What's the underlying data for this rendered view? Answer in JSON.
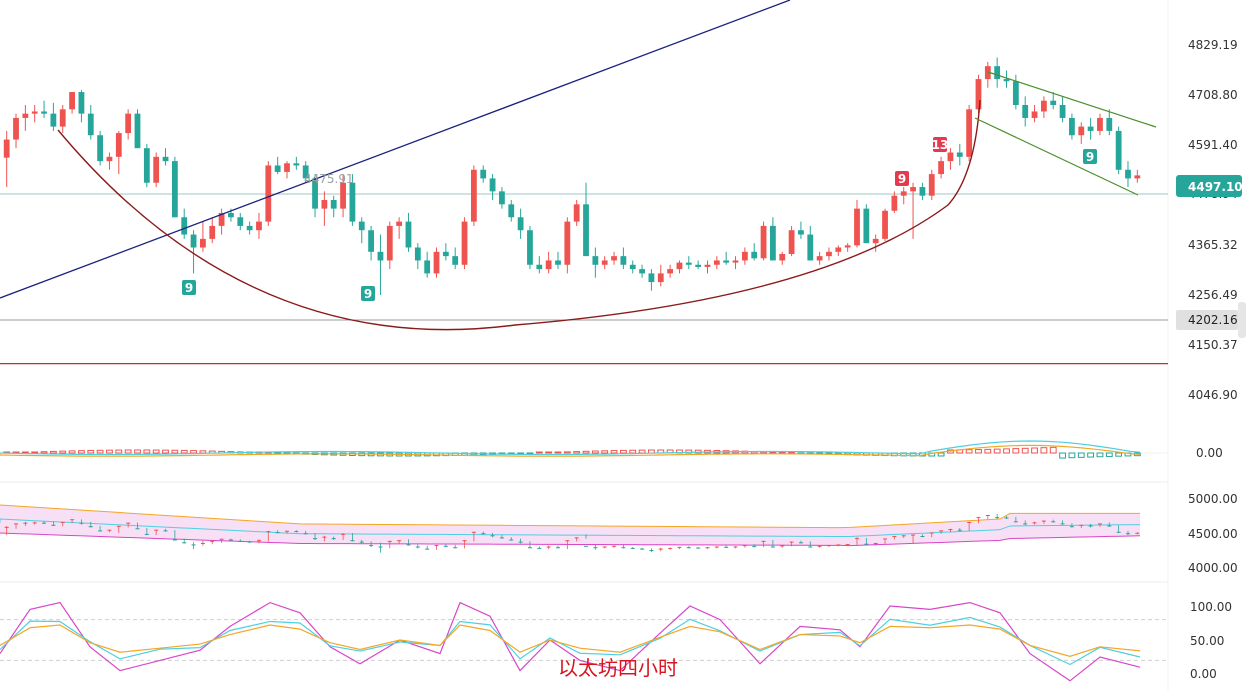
{
  "caption": "以太坊四小时",
  "chart_data": {
    "type": "candlestick",
    "main": {
      "ylim": [
        4000,
        4880
      ],
      "ticks": [
        "4829.19",
        "4708.80",
        "4591.40",
        "4365.32",
        "4256.49",
        "4150.37",
        "4046.90"
      ],
      "current_price": "4497.10",
      "marked_low": "4202.16",
      "axis_hidden_label": "4478.94",
      "annotated_high": "4475.91",
      "red_line": 4061,
      "candles_ohlc": [
        [
          4538,
          4600,
          4470,
          4580
        ],
        [
          4580,
          4640,
          4560,
          4630
        ],
        [
          4630,
          4660,
          4600,
          4640
        ],
        [
          4640,
          4660,
          4620,
          4645
        ],
        [
          4645,
          4670,
          4630,
          4640
        ],
        [
          4640,
          4665,
          4600,
          4610
        ],
        [
          4610,
          4660,
          4595,
          4650
        ],
        [
          4650,
          4690,
          4640,
          4690
        ],
        [
          4690,
          4695,
          4620,
          4640
        ],
        [
          4640,
          4660,
          4580,
          4590
        ],
        [
          4590,
          4600,
          4520,
          4530
        ],
        [
          4530,
          4550,
          4510,
          4540
        ],
        [
          4540,
          4600,
          4500,
          4595
        ],
        [
          4595,
          4650,
          4580,
          4640
        ],
        [
          4640,
          4650,
          4560,
          4560
        ],
        [
          4560,
          4570,
          4470,
          4480
        ],
        [
          4480,
          4550,
          4470,
          4540
        ],
        [
          4540,
          4560,
          4520,
          4530
        ],
        [
          4530,
          4540,
          4400,
          4400
        ],
        [
          4400,
          4420,
          4350,
          4360
        ],
        [
          4360,
          4370,
          4270,
          4330
        ],
        [
          4330,
          4390,
          4320,
          4350
        ],
        [
          4350,
          4400,
          4340,
          4380
        ],
        [
          4380,
          4420,
          4360,
          4410
        ],
        [
          4410,
          4420,
          4390,
          4400
        ],
        [
          4400,
          4410,
          4370,
          4380
        ],
        [
          4380,
          4390,
          4360,
          4370
        ],
        [
          4370,
          4410,
          4350,
          4390
        ],
        [
          4390,
          4530,
          4380,
          4520
        ],
        [
          4520,
          4540,
          4500,
          4505
        ],
        [
          4505,
          4530,
          4490,
          4525
        ],
        [
          4525,
          4540,
          4510,
          4520
        ],
        [
          4520,
          4530,
          4480,
          4490
        ],
        [
          4490,
          4500,
          4400,
          4420
        ],
        [
          4420,
          4460,
          4380,
          4440
        ],
        [
          4440,
          4450,
          4400,
          4420
        ],
        [
          4420,
          4500,
          4400,
          4480
        ],
        [
          4480,
          4500,
          4380,
          4390
        ],
        [
          4390,
          4400,
          4340,
          4370
        ],
        [
          4370,
          4380,
          4300,
          4320
        ],
        [
          4320,
          4360,
          4220,
          4300
        ],
        [
          4300,
          4390,
          4280,
          4380
        ],
        [
          4380,
          4400,
          4350,
          4390
        ],
        [
          4390,
          4410,
          4320,
          4330
        ],
        [
          4330,
          4340,
          4280,
          4300
        ],
        [
          4300,
          4320,
          4260,
          4270
        ],
        [
          4270,
          4330,
          4260,
          4320
        ],
        [
          4320,
          4340,
          4300,
          4310
        ],
        [
          4310,
          4330,
          4280,
          4290
        ],
        [
          4290,
          4400,
          4280,
          4390
        ],
        [
          4390,
          4520,
          4380,
          4510
        ],
        [
          4510,
          4520,
          4480,
          4490
        ],
        [
          4490,
          4500,
          4440,
          4460
        ],
        [
          4460,
          4470,
          4420,
          4430
        ],
        [
          4430,
          4440,
          4390,
          4400
        ],
        [
          4400,
          4420,
          4350,
          4370
        ],
        [
          4370,
          4380,
          4280,
          4290
        ],
        [
          4290,
          4310,
          4270,
          4280
        ],
        [
          4280,
          4320,
          4270,
          4300
        ],
        [
          4300,
          4320,
          4280,
          4290
        ],
        [
          4290,
          4400,
          4270,
          4390
        ],
        [
          4390,
          4440,
          4380,
          4430
        ],
        [
          4430,
          4480,
          4420,
          4310
        ],
        [
          4310,
          4330,
          4260,
          4290
        ],
        [
          4290,
          4310,
          4280,
          4300
        ],
        [
          4300,
          4320,
          4290,
          4310
        ],
        [
          4310,
          4330,
          4280,
          4290
        ],
        [
          4290,
          4300,
          4270,
          4280
        ],
        [
          4280,
          4290,
          4260,
          4270
        ],
        [
          4270,
          4280,
          4230,
          4250
        ],
        [
          4250,
          4290,
          4240,
          4270
        ],
        [
          4270,
          4290,
          4260,
          4280
        ],
        [
          4280,
          4300,
          4270,
          4295
        ],
        [
          4295,
          4310,
          4280,
          4290
        ],
        [
          4290,
          4300,
          4280,
          4285
        ],
        [
          4285,
          4300,
          4270,
          4290
        ],
        [
          4290,
          4310,
          4280,
          4300
        ],
        [
          4300,
          4320,
          4290,
          4295
        ],
        [
          4295,
          4310,
          4280,
          4300
        ],
        [
          4300,
          4330,
          4290,
          4320
        ],
        [
          4320,
          4340,
          4300,
          4305
        ],
        [
          4305,
          4390,
          4300,
          4380
        ],
        [
          4380,
          4400,
          4300,
          4300
        ],
        [
          4300,
          4320,
          4290,
          4315
        ],
        [
          4315,
          4380,
          4310,
          4370
        ],
        [
          4370,
          4390,
          4350,
          4360
        ],
        [
          4360,
          4380,
          4300,
          4300
        ],
        [
          4300,
          4320,
          4290,
          4310
        ],
        [
          4310,
          4330,
          4300,
          4320
        ],
        [
          4320,
          4335,
          4310,
          4330
        ],
        [
          4330,
          4340,
          4320,
          4335
        ],
        [
          4335,
          4440,
          4330,
          4420
        ],
        [
          4420,
          4430,
          4340,
          4340
        ],
        [
          4340,
          4360,
          4320,
          4350
        ],
        [
          4350,
          4420,
          4345,
          4415
        ],
        [
          4415,
          4460,
          4410,
          4450
        ],
        [
          4450,
          4470,
          4430,
          4460
        ],
        [
          4460,
          4480,
          4350,
          4470
        ],
        [
          4470,
          4480,
          4440,
          4450
        ],
        [
          4450,
          4510,
          4440,
          4500
        ],
        [
          4500,
          4540,
          4490,
          4530
        ],
        [
          4530,
          4560,
          4510,
          4550
        ],
        [
          4550,
          4570,
          4520,
          4540
        ],
        [
          4540,
          4660,
          4530,
          4650
        ],
        [
          4650,
          4730,
          4640,
          4720
        ],
        [
          4720,
          4760,
          4700,
          4750
        ],
        [
          4750,
          4770,
          4700,
          4720
        ],
        [
          4720,
          4740,
          4700,
          4715
        ],
        [
          4715,
          4730,
          4650,
          4660
        ],
        [
          4660,
          4680,
          4610,
          4630
        ],
        [
          4630,
          4660,
          4620,
          4645
        ],
        [
          4645,
          4680,
          4630,
          4670
        ],
        [
          4670,
          4690,
          4650,
          4660
        ],
        [
          4660,
          4680,
          4620,
          4630
        ],
        [
          4630,
          4640,
          4580,
          4590
        ],
        [
          4590,
          4620,
          4570,
          4610
        ],
        [
          4610,
          4630,
          4580,
          4600
        ],
        [
          4600,
          4640,
          4590,
          4630
        ],
        [
          4630,
          4650,
          4590,
          4600
        ],
        [
          4600,
          4610,
          4500,
          4510
        ],
        [
          4510,
          4530,
          4470,
          4490
        ],
        [
          4490,
          4510,
          4480,
          4497
        ]
      ]
    },
    "annotations": [
      {
        "label": "9",
        "color": "green",
        "index": 13
      },
      {
        "label": "9",
        "color": "green",
        "index": 38
      },
      {
        "label": "9",
        "color": "red",
        "index": 97
      },
      {
        "label": "13",
        "color": "red",
        "index": 101
      },
      {
        "label": "9",
        "color": "green",
        "index": 117
      }
    ],
    "macd": {
      "zero_label": "0.00"
    },
    "boll": {
      "ticks": [
        "5000.00",
        "4500.00",
        "4000.00"
      ]
    },
    "kdj": {
      "ticks": [
        "100.00",
        "50.00",
        "0.00"
      ]
    },
    "colors": {
      "up": "#ef5350",
      "down": "#26a69a",
      "ma_orange": "#f5a623",
      "ma_cyan": "#4dd0e1",
      "ma_purple": "#d946c8",
      "arc": "#8b1a1a",
      "trend": "#1a237e",
      "channel": "#4a8f2a",
      "hline": "#cc2b2b"
    }
  }
}
